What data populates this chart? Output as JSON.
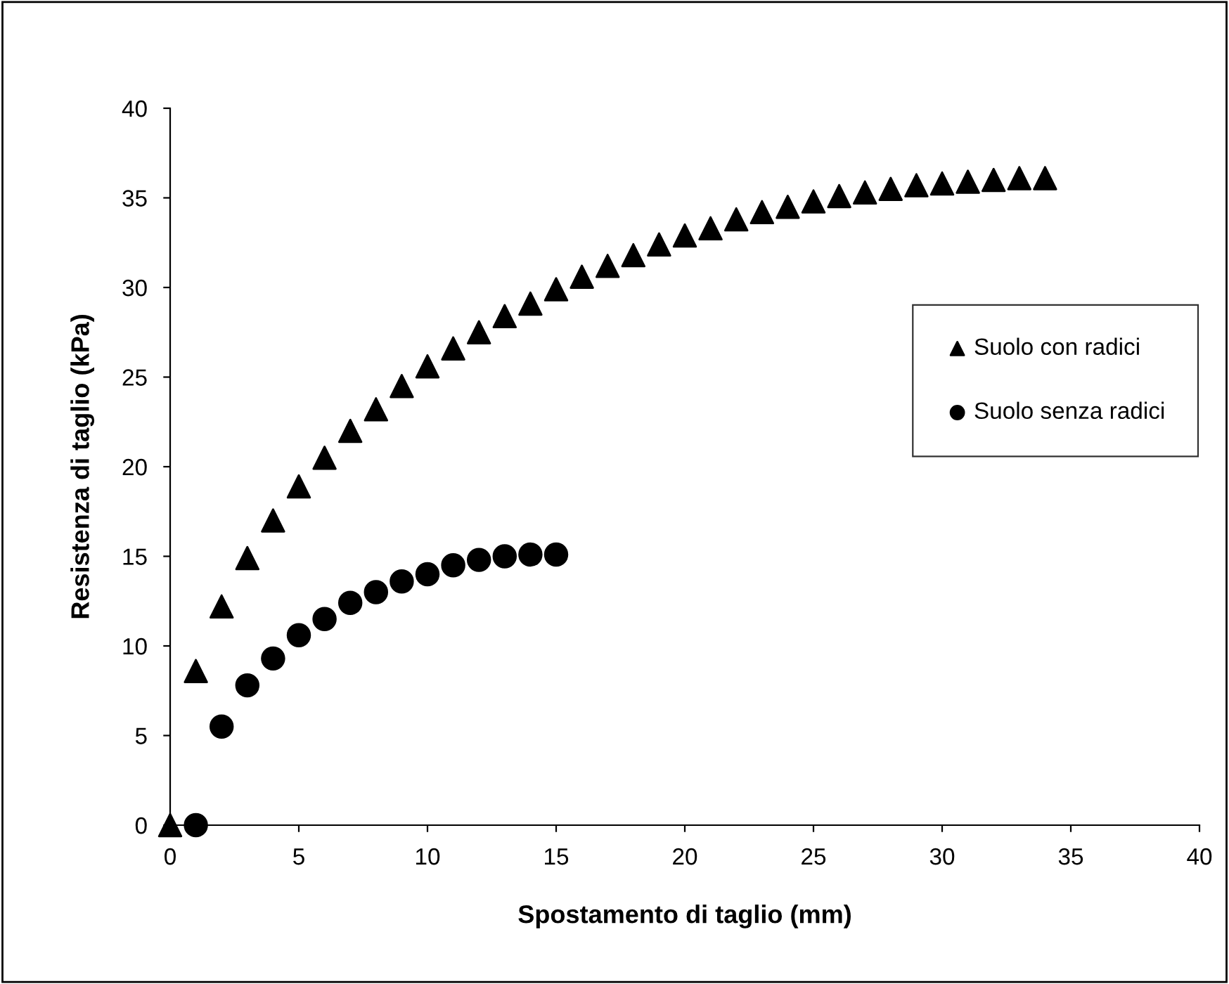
{
  "chart_data": {
    "type": "scatter",
    "xlabel": "Spostamento di taglio (mm)",
    "ylabel": "Resistenza di taglio (kPa)",
    "xlim": [
      0,
      40
    ],
    "xticks": [
      0,
      5,
      10,
      15,
      20,
      25,
      30,
      35,
      40
    ],
    "ylim": [
      0,
      40
    ],
    "yticks": [
      0,
      5,
      10,
      15,
      20,
      25,
      30,
      35,
      40
    ],
    "grid": false,
    "legend": "right",
    "series": [
      {
        "name": "Suolo con radici",
        "color": "#000000",
        "marker": "triangle",
        "x": [
          0,
          1,
          2,
          3,
          4,
          5,
          6,
          7,
          8,
          9,
          10,
          11,
          12,
          13,
          14,
          15,
          16,
          17,
          18,
          19,
          20,
          21,
          22,
          23,
          24,
          25,
          26,
          27,
          28,
          29,
          30,
          31,
          32,
          33,
          34
        ],
        "values": [
          0,
          8.6,
          12.2,
          14.9,
          17.0,
          18.9,
          20.5,
          22.0,
          23.2,
          24.5,
          25.6,
          26.6,
          27.5,
          28.4,
          29.1,
          29.9,
          30.6,
          31.2,
          31.8,
          32.4,
          32.9,
          33.3,
          33.8,
          34.2,
          34.5,
          34.8,
          35.1,
          35.3,
          35.5,
          35.7,
          35.8,
          35.9,
          36.0,
          36.1,
          36.1
        ]
      },
      {
        "name": "Suolo senza radici",
        "color": "#000000",
        "marker": "circle",
        "x": [
          1,
          2,
          3,
          4,
          5,
          6,
          7,
          8,
          9,
          10,
          11,
          12,
          13,
          14,
          15
        ],
        "values": [
          0,
          5.5,
          7.8,
          9.3,
          10.6,
          11.5,
          12.4,
          13.0,
          13.6,
          14.0,
          14.5,
          14.8,
          15.0,
          15.1,
          15.1
        ]
      }
    ]
  }
}
